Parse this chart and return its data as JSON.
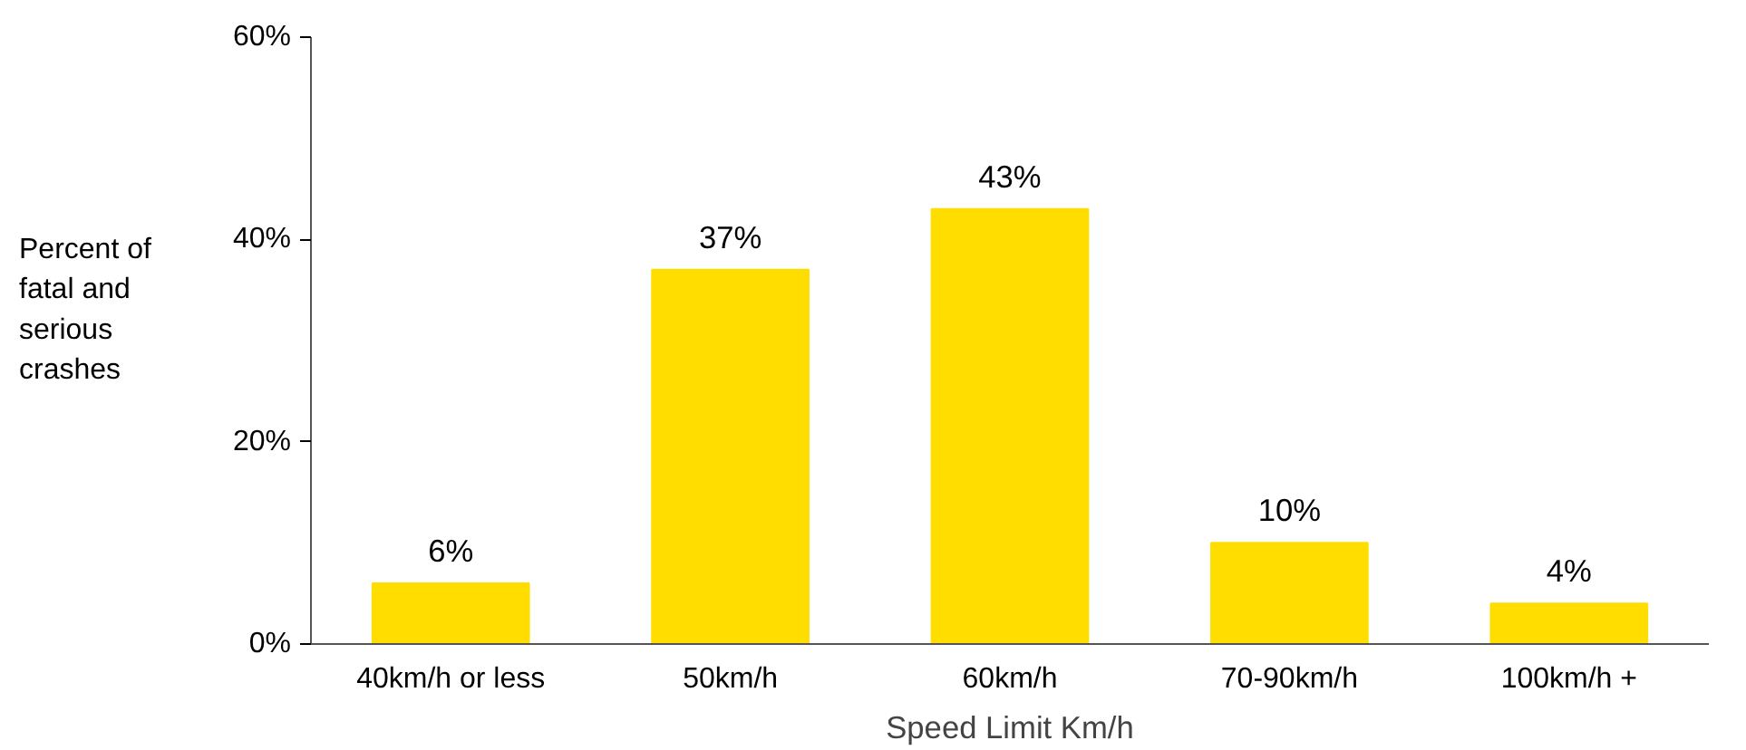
{
  "chart_data": {
    "type": "bar",
    "xlabel": "Speed Limit Km/h",
    "ylabel": "Percent of fatal and serious crashes",
    "categories": [
      "40km/h or less",
      "50km/h",
      "60km/h",
      "70-90km/h",
      "100km/h +"
    ],
    "values": [
      6,
      37,
      43,
      10,
      4
    ],
    "color": "#ffdd00",
    "value_labels": [
      "6%",
      "37%",
      "43%",
      "10%",
      "4%"
    ],
    "ylim": [
      0,
      60
    ],
    "yticks": [
      {
        "value": 0,
        "label": "0%"
      },
      {
        "value": 20,
        "label": "20%"
      },
      {
        "value": 40,
        "label": "40%"
      },
      {
        "value": 60,
        "label": "60%"
      }
    ],
    "grid": false
  }
}
